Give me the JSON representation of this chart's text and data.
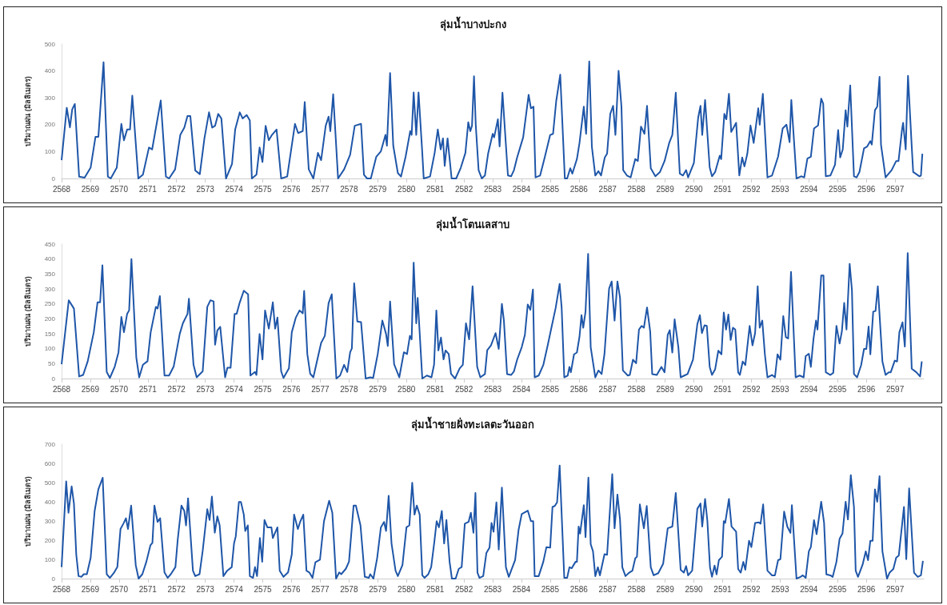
{
  "chart_data": [
    {
      "type": "line",
      "title": "ลุ่มน้ำบางปะกง",
      "ylabel": "ปริมาณฝน (มิลลิเมตร)",
      "color": "#1f56a8",
      "xlim": [
        2568,
        2598
      ],
      "xticks": [
        2568,
        2569,
        2570,
        2571,
        2572,
        2573,
        2574,
        2575,
        2576,
        2577,
        2578,
        2579,
        2580,
        2581,
        2582,
        2583,
        2584,
        2585,
        2586,
        2587,
        2588,
        2589,
        2590,
        2591,
        2592,
        2593,
        2594,
        2595,
        2596,
        2597
      ],
      "ylim": [
        0,
        500
      ],
      "yticks": [
        0,
        100,
        200,
        300,
        400,
        500
      ],
      "x": [
        2568,
        2568.18,
        2568.29,
        2568.37,
        2568.46,
        2568.61,
        2568.8,
        2569.01,
        2569.18,
        2569.28,
        2569.46,
        2569.61,
        2569.71,
        2569.92,
        2570.08,
        2570.17,
        2570.28,
        2570.38,
        2570.46,
        2570.67,
        2570.83,
        2571.04,
        2571.15,
        2571.45,
        2571.63,
        2571.74,
        2571.95,
        2572.13,
        2572.27,
        2572.38,
        2572.48,
        2572.65,
        2572.81,
        2572.97,
        2573.13,
        2573.24,
        2573.34,
        2573.45,
        2573.56,
        2573.72,
        2573.93,
        2574.04,
        2574.2,
        2574.3,
        2574.44,
        2574.55,
        2574.62,
        2574.78,
        2574.89,
        2574.99,
        2575.1,
        2575.21,
        2575.32,
        2575.48,
        2575.64,
        2575.85,
        2576.12,
        2576.23,
        2576.39,
        2576.46,
        2576.6,
        2576.76,
        2576.92,
        2577.03,
        2577.19,
        2577.29,
        2577.35,
        2577.45,
        2577.62,
        2577.83,
        2578.04,
        2578.2,
        2578.42,
        2578.52,
        2578.63,
        2578.76,
        2578.95,
        2579.11,
        2579.27,
        2579.32,
        2579.43,
        2579.54,
        2579.7,
        2579.81,
        2579.97,
        2580.13,
        2580.18,
        2580.25,
        2580.34,
        2580.42,
        2580.55,
        2580.6,
        2580.82,
        2580.98,
        2581.09,
        2581.19,
        2581.27,
        2581.33,
        2581.43,
        2581.57,
        2581.73,
        2581.89,
        2582.05,
        2582.15,
        2582.22,
        2582.28,
        2582.35,
        2582.41,
        2582.51,
        2582.62,
        2582.73,
        2582.84,
        2583,
        2583.05,
        2583.18,
        2583.24,
        2583.34,
        2583.53,
        2583.64,
        2583.74,
        2583.85,
        2584.06,
        2584.25,
        2584.33,
        2584.42,
        2584.49,
        2584.65,
        2584.81,
        2585,
        2585.1,
        2585.21,
        2585.35,
        2585.51,
        2585.59,
        2585.7,
        2585.77,
        2585.93,
        2586.02,
        2586.17,
        2586.25,
        2586.36,
        2586.45,
        2586.57,
        2586.68,
        2586.77,
        2586.9,
        2586.98,
        2587.09,
        2587.19,
        2587.27,
        2587.38,
        2587.48,
        2587.54,
        2587.67,
        2587.8,
        2587.96,
        2588.05,
        2588.16,
        2588.28,
        2588.37,
        2588.5,
        2588.66,
        2588.82,
        2588.98,
        2589.14,
        2589.25,
        2589.37,
        2589.51,
        2589.62,
        2589.73,
        2589.8,
        2590,
        2590.15,
        2590.23,
        2590.29,
        2590.39,
        2590.55,
        2590.63,
        2590.74,
        2590.9,
        2590.95,
        2591.06,
        2591.13,
        2591.22,
        2591.3,
        2591.47,
        2591.58,
        2591.68,
        2591.76,
        2591.86,
        2591.97,
        2592.08,
        2592.24,
        2592.29,
        2592.4,
        2592.56,
        2592.72,
        2592.93,
        2593.09,
        2593.22,
        2593.33,
        2593.39,
        2593.57,
        2593.73,
        2593.84,
        2593.95,
        2594.07,
        2594.18,
        2594.32,
        2594.43,
        2594.5,
        2594.59,
        2594.75,
        2594.91,
        2595.02,
        2595.09,
        2595.18,
        2595.28,
        2595.34,
        2595.44,
        2595.57,
        2595.66,
        2595.76,
        2595.92,
        2596.03,
        2596.14,
        2596.19,
        2596.3,
        2596.38,
        2596.46,
        2596.51,
        2596.67,
        2596.88,
        2597.04,
        2597.12,
        2597.24,
        2597.28,
        2597.37,
        2597.45,
        2597.58,
        2597.63,
        2597.85,
        2597.9,
        2597.95
      ],
      "values": [
        68,
        263,
        190,
        257,
        277,
        7,
        3,
        40,
        155,
        155,
        432,
        7,
        0,
        40,
        203,
        142,
        182,
        182,
        308,
        0,
        14,
        115,
        108,
        290,
        7,
        0,
        34,
        162,
        189,
        232,
        232,
        30,
        16,
        149,
        246,
        189,
        196,
        240,
        223,
        0,
        54,
        182,
        246,
        223,
        236,
        216,
        0,
        14,
        115,
        61,
        196,
        142,
        162,
        182,
        0,
        7,
        203,
        169,
        176,
        284,
        34,
        0,
        95,
        68,
        196,
        230,
        176,
        313,
        0,
        34,
        88,
        196,
        203,
        14,
        0,
        0,
        81,
        101,
        162,
        122,
        392,
        122,
        20,
        7,
        81,
        176,
        162,
        320,
        162,
        320,
        95,
        0,
        7,
        95,
        182,
        108,
        149,
        47,
        149,
        0,
        0,
        40,
        95,
        209,
        176,
        196,
        380,
        200,
        31,
        0,
        11,
        92,
        166,
        153,
        220,
        119,
        319,
        11,
        8,
        31,
        78,
        153,
        311,
        261,
        267,
        4,
        11,
        78,
        162,
        166,
        288,
        386,
        0,
        0,
        38,
        18,
        72,
        132,
        267,
        166,
        435,
        119,
        11,
        27,
        11,
        78,
        92,
        240,
        270,
        162,
        400,
        267,
        31,
        11,
        4,
        72,
        65,
        193,
        166,
        270,
        38,
        8,
        24,
        65,
        132,
        162,
        319,
        18,
        11,
        31,
        4,
        58,
        227,
        270,
        162,
        292,
        41,
        8,
        24,
        85,
        72,
        240,
        220,
        315,
        173,
        207,
        11,
        78,
        45,
        92,
        197,
        132,
        261,
        200,
        315,
        4,
        11,
        81,
        186,
        200,
        135,
        292,
        0,
        8,
        4,
        74,
        81,
        186,
        197,
        297,
        278,
        8,
        11,
        51,
        180,
        78,
        108,
        254,
        193,
        346,
        8,
        4,
        24,
        112,
        119,
        139,
        126,
        254,
        267,
        378,
        126,
        4,
        31,
        65,
        65,
        180,
        207,
        108,
        382,
        119,
        24,
        8,
        11,
        92
      ]
    },
    {
      "type": "line",
      "title": "ลุ่มน้ำโตนเลสาบ",
      "ylabel": "ปริมาณฝน (มิลลิเมตร)",
      "color": "#1f56a8",
      "xlim": [
        2568,
        2598
      ],
      "xticks": [
        2568,
        2569,
        2570,
        2571,
        2572,
        2573,
        2574,
        2575,
        2576,
        2577,
        2578,
        2579,
        2580,
        2581,
        2582,
        2583,
        2584,
        2585,
        2586,
        2587,
        2588,
        2589,
        2590,
        2591,
        2592,
        2593,
        2594,
        2595,
        2596,
        2597
      ],
      "ylim": [
        0,
        450
      ],
      "yticks": [
        0,
        50,
        100,
        150,
        200,
        250,
        300,
        350,
        400,
        450
      ],
      "x": [
        2568,
        2568.25,
        2568.43,
        2568.61,
        2568.75,
        2568.91,
        2569.12,
        2569.25,
        2569.34,
        2569.42,
        2569.57,
        2569.68,
        2569.85,
        2569.98,
        2570.08,
        2570.17,
        2570.28,
        2570.35,
        2570.43,
        2570.6,
        2570.7,
        2570.83,
        2570.99,
        2571.1,
        2571.28,
        2571.34,
        2571.42,
        2571.58,
        2571.74,
        2571.9,
        2572.11,
        2572.22,
        2572.38,
        2572.43,
        2572.59,
        2572.7,
        2572.91,
        2573.07,
        2573.18,
        2573.29,
        2573.34,
        2573.42,
        2573.52,
        2573.69,
        2573.77,
        2573.88,
        2574.02,
        2574.09,
        2574.2,
        2574.34,
        2574.49,
        2574.57,
        2574.73,
        2574.78,
        2574.89,
        2574.99,
        2575.08,
        2575.21,
        2575.35,
        2575.43,
        2575.51,
        2575.64,
        2575.72,
        2575.91,
        2576.01,
        2576.15,
        2576.28,
        2576.39,
        2576.44,
        2576.55,
        2576.65,
        2576.76,
        2577.03,
        2577.16,
        2577.29,
        2577.4,
        2577.56,
        2577.69,
        2577.83,
        2577.94,
        2578.04,
        2578.1,
        2578.18,
        2578.29,
        2578.42,
        2578.58,
        2578.74,
        2578.84,
        2579,
        2579.16,
        2579.29,
        2579.35,
        2579.43,
        2579.57,
        2579.75,
        2579.91,
        2580.02,
        2580.12,
        2580.18,
        2580.25,
        2580.34,
        2580.39,
        2580.55,
        2580.71,
        2580.87,
        2580.96,
        2581.04,
        2581.11,
        2581.2,
        2581.29,
        2581.36,
        2581.47,
        2581.55,
        2581.69,
        2581.85,
        2581.96,
        2582.07,
        2582.18,
        2582.3,
        2582.46,
        2582.57,
        2582.73,
        2582.81,
        2582.94,
        2583.1,
        2583.21,
        2583.32,
        2583.39,
        2583.5,
        2583.64,
        2583.74,
        2583.85,
        2584.01,
        2584.12,
        2584.22,
        2584.31,
        2584.4,
        2584.46,
        2584.6,
        2584.76,
        2584.92,
        2585.03,
        2585.19,
        2585.33,
        2585.4,
        2585.49,
        2585.61,
        2585.67,
        2585.72,
        2585.83,
        2585.93,
        2586.02,
        2586.09,
        2586.15,
        2586.23,
        2586.32,
        2586.41,
        2586.57,
        2586.68,
        2586.79,
        2586.89,
        2587.05,
        2587.14,
        2587.24,
        2587.34,
        2587.43,
        2587.53,
        2587.7,
        2587.77,
        2587.88,
        2587.99,
        2588.09,
        2588.18,
        2588.26,
        2588.37,
        2588.48,
        2588.55,
        2588.71,
        2588.87,
        2588.98,
        2589.09,
        2589.16,
        2589.25,
        2589.33,
        2589.46,
        2589.54,
        2589.67,
        2589.78,
        2589.97,
        2590.12,
        2590.21,
        2590.28,
        2590.37,
        2590.45,
        2590.55,
        2590.63,
        2590.74,
        2590.85,
        2590.96,
        2591.04,
        2591.12,
        2591.2,
        2591.28,
        2591.36,
        2591.44,
        2591.54,
        2591.6,
        2591.7,
        2591.79,
        2591.94,
        2592.04,
        2592.13,
        2592.22,
        2592.29,
        2592.38,
        2592.47,
        2592.56,
        2592.72,
        2592.82,
        2592.91,
        2593.01,
        2593.11,
        2593.2,
        2593.28,
        2593.38,
        2593.54,
        2593.68,
        2593.82,
        2593.89,
        2594,
        2594.07,
        2594.16,
        2594.25,
        2594.3,
        2594.43,
        2594.51,
        2594.59,
        2594.75,
        2594.85,
        2594.96,
        2595.07,
        2595.15,
        2595.23,
        2595.31,
        2595.42,
        2595.5,
        2595.57,
        2595.68,
        2595.82,
        2595.92,
        2596,
        2596.08,
        2596.14,
        2596.24,
        2596.32,
        2596.4,
        2596.56,
        2596.67,
        2596.78,
        2596.85,
        2596.99,
        2597.07,
        2597.15,
        2597.26,
        2597.34,
        2597.44,
        2597.58,
        2597.74,
        2597.87,
        2597.93
      ],
      "values": [
        48,
        262,
        234,
        7,
        12,
        58,
        155,
        255,
        255,
        379,
        22,
        2,
        40,
        88,
        206,
        155,
        216,
        228,
        400,
        70,
        4,
        46,
        58,
        155,
        240,
        234,
        276,
        10,
        10,
        40,
        149,
        185,
        216,
        267,
        46,
        4,
        24,
        240,
        262,
        258,
        113,
        161,
        173,
        4,
        36,
        36,
        216,
        216,
        255,
        294,
        282,
        10,
        22,
        12,
        149,
        64,
        228,
        167,
        255,
        167,
        204,
        24,
        2,
        34,
        155,
        204,
        228,
        218,
        293,
        82,
        16,
        4,
        119,
        143,
        252,
        282,
        0,
        10,
        46,
        22,
        88,
        101,
        319,
        191,
        189,
        0,
        4,
        2,
        82,
        194,
        149,
        109,
        258,
        48,
        4,
        88,
        82,
        143,
        131,
        388,
        185,
        270,
        0,
        10,
        4,
        46,
        228,
        94,
        137,
        64,
        94,
        82,
        16,
        0,
        34,
        46,
        185,
        131,
        309,
        39,
        4,
        15,
        95,
        111,
        152,
        99,
        250,
        194,
        15,
        12,
        24,
        63,
        105,
        146,
        248,
        230,
        298,
        4,
        10,
        45,
        114,
        164,
        236,
        317,
        236,
        4,
        10,
        39,
        21,
        81,
        87,
        140,
        212,
        170,
        224,
        417,
        105,
        4,
        27,
        15,
        83,
        301,
        325,
        194,
        325,
        271,
        27,
        10,
        12,
        63,
        51,
        164,
        176,
        170,
        238,
        158,
        15,
        12,
        39,
        21,
        146,
        162,
        87,
        198,
        105,
        4,
        10,
        15,
        63,
        182,
        212,
        152,
        178,
        176,
        39,
        12,
        31,
        93,
        81,
        221,
        164,
        214,
        129,
        170,
        164,
        21,
        12,
        57,
        45,
        176,
        111,
        152,
        309,
        170,
        194,
        81,
        4,
        12,
        4,
        81,
        63,
        209,
        138,
        134,
        357,
        4,
        10,
        4,
        75,
        83,
        39,
        131,
        194,
        164,
        345,
        345,
        21,
        12,
        19,
        176,
        117,
        158,
        253,
        164,
        384,
        295,
        15,
        4,
        45,
        99,
        99,
        174,
        81,
        224,
        226,
        309,
        57,
        12,
        21,
        21,
        60,
        57,
        155,
        188,
        107,
        420,
        33,
        21,
        7,
        57
      ]
    },
    {
      "type": "line",
      "title": "ลุ่มน้ำชายฝั่งทะเลตะวันออก",
      "ylabel": "ปริมาณฝน (มิลลิเมตร)",
      "color": "#1f56a8",
      "xlim": [
        2568,
        2598
      ],
      "xticks": [
        2568,
        2569,
        2570,
        2571,
        2572,
        2573,
        2574,
        2575,
        2576,
        2577,
        2578,
        2579,
        2580,
        2581,
        2582,
        2583,
        2584,
        2585,
        2586,
        2587,
        2588,
        2589,
        2590,
        2591,
        2592,
        2593,
        2594,
        2595,
        2596,
        2597
      ],
      "ylim": [
        0,
        700
      ],
      "yticks": [
        0,
        100,
        200,
        300,
        400,
        500,
        600,
        700
      ],
      "x": [
        2568,
        2568.16,
        2568.24,
        2568.35,
        2568.43,
        2568.51,
        2568.59,
        2568.69,
        2568.77,
        2568.88,
        2569.01,
        2569.15,
        2569.28,
        2569.43,
        2569.57,
        2569.68,
        2569.83,
        2569.94,
        2570.05,
        2570.15,
        2570.24,
        2570.31,
        2570.42,
        2570.58,
        2570.68,
        2570.81,
        2570.95,
        2571.09,
        2571.16,
        2571.23,
        2571.34,
        2571.43,
        2571.58,
        2571.69,
        2571.8,
        2571.96,
        2572.04,
        2572.17,
        2572.27,
        2572.33,
        2572.4,
        2572.57,
        2572.65,
        2572.8,
        2572.91,
        2573.07,
        2573.15,
        2573.23,
        2573.33,
        2573.42,
        2573.5,
        2573.63,
        2573.76,
        2573.92,
        2574,
        2574.06,
        2574.17,
        2574.24,
        2574.34,
        2574.39,
        2574.48,
        2574.55,
        2574.66,
        2574.73,
        2574.8,
        2574.9,
        2574.98,
        2575.06,
        2575.16,
        2575.3,
        2575.35,
        2575.51,
        2575.59,
        2575.72,
        2575.88,
        2576.01,
        2576.09,
        2576.22,
        2576.3,
        2576.41,
        2576.52,
        2576.62,
        2576.73,
        2576.83,
        2576.99,
        2577.13,
        2577.31,
        2577.42,
        2577.55,
        2577.66,
        2577.73,
        2577.89,
        2578,
        2578.16,
        2578.24,
        2578.4,
        2578.55,
        2578.69,
        2578.74,
        2578.85,
        2578.98,
        2579.11,
        2579.22,
        2579.29,
        2579.38,
        2579.48,
        2579.62,
        2579.7,
        2579.86,
        2580,
        2580.1,
        2580.2,
        2580.28,
        2580.36,
        2580.46,
        2580.55,
        2580.63,
        2580.76,
        2580.86,
        2580.97,
        2581.05,
        2581.13,
        2581.23,
        2581.31,
        2581.39,
        2581.5,
        2581.58,
        2581.71,
        2581.82,
        2581.92,
        2582.03,
        2582.16,
        2582.24,
        2582.33,
        2582.4,
        2582.47,
        2582.54,
        2582.67,
        2582.78,
        2582.89,
        2582.96,
        2583.03,
        2583.13,
        2583.21,
        2583.32,
        2583.46,
        2583.56,
        2583.64,
        2583.78,
        2583.9,
        2584.01,
        2584.22,
        2584.33,
        2584.41,
        2584.46,
        2584.6,
        2584.76,
        2584.87,
        2585,
        2585.08,
        2585.16,
        2585.24,
        2585.33,
        2585.49,
        2585.59,
        2585.67,
        2585.75,
        2585.88,
        2585.93,
        2585.99,
        2586.04,
        2586.17,
        2586.23,
        2586.33,
        2586.41,
        2586.49,
        2586.57,
        2586.66,
        2586.73,
        2586.89,
        2586.98,
        2587.16,
        2587.24,
        2587.34,
        2587.43,
        2587.51,
        2587.62,
        2587.75,
        2587.86,
        2587.96,
        2588.02,
        2588.12,
        2588.26,
        2588.36,
        2588.5,
        2588.6,
        2588.76,
        2588.93,
        2589.09,
        2589.25,
        2589.37,
        2589.54,
        2589.65,
        2589.73,
        2589.8,
        2589.94,
        2590.12,
        2590.23,
        2590.29,
        2590.39,
        2590.47,
        2590.56,
        2590.63,
        2590.72,
        2590.79,
        2590.87,
        2590.98,
        2591.04,
        2591.09,
        2591.22,
        2591.31,
        2591.47,
        2591.54,
        2591.63,
        2591.72,
        2591.79,
        2591.92,
        2592,
        2592.13,
        2592.26,
        2592.32,
        2592.41,
        2592.56,
        2592.72,
        2592.82,
        2592.93,
        2593.01,
        2593.14,
        2593.25,
        2593.36,
        2593.41,
        2593.57,
        2593.71,
        2593.79,
        2593.89,
        2594,
        2594.07,
        2594.18,
        2594.27,
        2594.43,
        2594.53,
        2594.61,
        2594.75,
        2594.83,
        2594.96,
        2595.07,
        2595.17,
        2595.28,
        2595.36,
        2595.46,
        2595.57,
        2595.63,
        2595.71,
        2595.87,
        2595.98,
        2596.06,
        2596.14,
        2596.22,
        2596.3,
        2596.38,
        2596.46,
        2596.56,
        2596.72,
        2596.81,
        2596.94,
        2597.04,
        2597.13,
        2597.31,
        2597.39,
        2597.49,
        2597.66,
        2597.79,
        2597.9,
        2597.97
      ],
      "values": [
        60,
        506,
        343,
        480,
        390,
        126,
        13,
        9,
        23,
        23,
        107,
        352,
        465,
        525,
        23,
        4,
        32,
        60,
        258,
        286,
        314,
        258,
        380,
        70,
        0,
        23,
        88,
        173,
        186,
        380,
        295,
        314,
        32,
        4,
        23,
        60,
        201,
        380,
        352,
        277,
        418,
        41,
        13,
        23,
        145,
        361,
        305,
        427,
        239,
        324,
        277,
        13,
        41,
        60,
        183,
        220,
        399,
        399,
        333,
        248,
        277,
        13,
        4,
        60,
        13,
        211,
        88,
        305,
        267,
        267,
        211,
        267,
        41,
        9,
        32,
        126,
        333,
        258,
        295,
        333,
        41,
        32,
        4,
        85,
        98,
        299,
        405,
        343,
        0,
        32,
        23,
        51,
        88,
        380,
        380,
        277,
        9,
        4,
        23,
        0,
        107,
        267,
        295,
        248,
        431,
        183,
        41,
        13,
        70,
        267,
        277,
        499,
        333,
        380,
        333,
        17,
        4,
        23,
        60,
        192,
        299,
        267,
        352,
        183,
        305,
        88,
        0,
        0,
        51,
        60,
        286,
        295,
        343,
        239,
        446,
        31,
        4,
        13,
        133,
        161,
        290,
        244,
        397,
        151,
        474,
        59,
        9,
        41,
        96,
        253,
        336,
        354,
        299,
        299,
        13,
        13,
        87,
        164,
        161,
        373,
        378,
        397,
        589,
        4,
        4,
        59,
        54,
        87,
        87,
        271,
        234,
        382,
        216,
        526,
        179,
        142,
        13,
        59,
        17,
        127,
        124,
        544,
        262,
        437,
        308,
        59,
        13,
        31,
        41,
        105,
        114,
        386,
        262,
        378,
        59,
        17,
        28,
        77,
        262,
        271,
        446,
        46,
        31,
        65,
        17,
        41,
        363,
        391,
        271,
        415,
        299,
        59,
        9,
        68,
        22,
        96,
        114,
        299,
        290,
        415,
        271,
        244,
        50,
        31,
        87,
        46,
        197,
        164,
        290,
        293,
        286,
        386,
        41,
        17,
        17,
        96,
        101,
        349,
        271,
        238,
        382,
        0,
        9,
        17,
        4,
        142,
        164,
        304,
        231,
        400,
        290,
        22,
        17,
        9,
        87,
        207,
        234,
        400,
        308,
        539,
        373,
        41,
        9,
        72,
        142,
        96,
        197,
        197,
        465,
        400,
        533,
        142,
        0,
        31,
        50,
        109,
        120,
        373,
        101,
        470,
        31,
        9,
        17,
        92
      ]
    }
  ]
}
